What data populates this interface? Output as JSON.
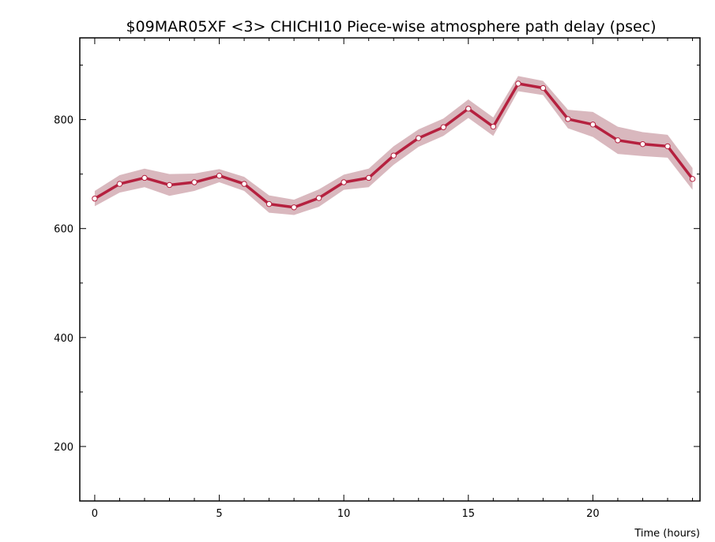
{
  "chart_data": {
    "type": "line",
    "title": "$09MAR05XF <3>   CHICHI10  Piece-wise atmosphere path delay (psec)",
    "xlabel": "Time (hours)",
    "ylabel": "",
    "xlim": [
      -0.6,
      24.3
    ],
    "ylim": [
      100,
      950
    ],
    "x_ticks": [
      0,
      5,
      10,
      15,
      20
    ],
    "y_ticks": [
      200,
      400,
      600,
      800
    ],
    "grid": false,
    "colors": {
      "line": "#b5213f",
      "band": "#d9b8be",
      "marker_fill": "#ffffff"
    },
    "series": [
      {
        "x": [
          0,
          1,
          2,
          3,
          4,
          5,
          6,
          7,
          8,
          9,
          10,
          11,
          12,
          13,
          14,
          15,
          16,
          17,
          18,
          19,
          20,
          21,
          22,
          23,
          24
        ],
        "values": [
          655,
          682,
          693,
          680,
          685,
          697,
          682,
          645,
          639,
          656,
          685,
          693,
          734,
          766,
          786,
          820,
          787,
          866,
          858,
          801,
          791,
          762,
          755,
          751,
          691
        ],
        "uncertainty": [
          14,
          16,
          17,
          20,
          16,
          12,
          13,
          16,
          14,
          16,
          14,
          17,
          17,
          16,
          16,
          17,
          17,
          14,
          13,
          17,
          23,
          25,
          22,
          21,
          20
        ]
      }
    ]
  }
}
